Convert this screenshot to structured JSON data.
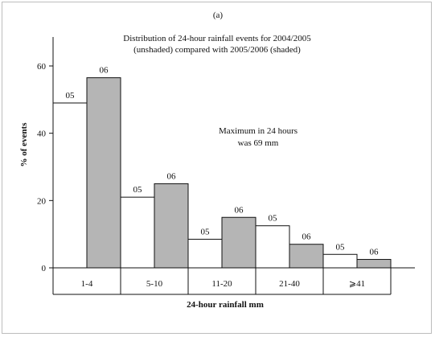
{
  "panel_label": "(a)",
  "chart_data": {
    "type": "bar",
    "title_line1": "Distribution of 24-hour rainfall events for 2004/2005",
    "title_line2": "(unshaded) compared with 2005/2006 (shaded)",
    "xlabel": "24-hour rainfall mm",
    "ylabel": "% of events",
    "ylim": [
      0,
      60
    ],
    "yticks": [
      0,
      20,
      40,
      60
    ],
    "categories": [
      "1-4",
      "5-10",
      "11-20",
      "21-40",
      "⩾41"
    ],
    "series": [
      {
        "name": "05",
        "shaded": false,
        "color": "#ffffff",
        "values": [
          49,
          21,
          8.5,
          12.5,
          4
        ]
      },
      {
        "name": "06",
        "shaded": true,
        "color": "#b5b5b5",
        "values": [
          56.5,
          25,
          15,
          7,
          2.5
        ]
      }
    ],
    "annotation_line1": "Maximum in 24 hours",
    "annotation_line2": "was 69 mm"
  }
}
